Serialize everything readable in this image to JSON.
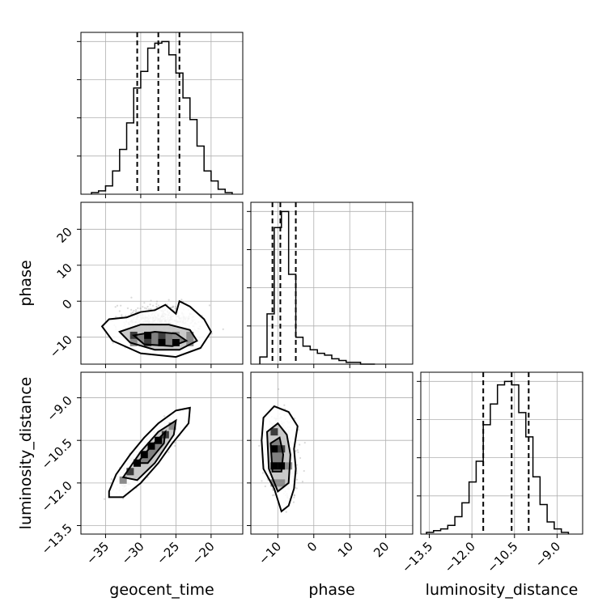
{
  "chart_data": {
    "type": "corner",
    "parameters": [
      "geocent_time",
      "phase",
      "luminosity_distance"
    ],
    "axis_ranges": {
      "geocent_time": [
        -38.5,
        -15.5
      ],
      "phase": [
        -17.5,
        27.5
      ],
      "luminosity_distance": [
        -13.8,
        -8.1
      ]
    },
    "ticks": {
      "geocent_time": [
        -35,
        -30,
        -25,
        -20
      ],
      "phase": [
        -10,
        0,
        10,
        20
      ],
      "luminosity_distance": [
        -13.5,
        -12.0,
        -10.5,
        -9.0
      ]
    },
    "tick_labels": {
      "geocent_time": [
        "−35",
        "−30",
        "−25",
        "−20"
      ],
      "phase": [
        "−10",
        "0",
        "10",
        "20"
      ],
      "luminosity_distance": [
        "−13.5",
        "−12.0",
        "−10.5",
        "−9.0"
      ]
    },
    "quantiles": {
      "geocent_time": [
        -30.5,
        -27.5,
        -24.5
      ],
      "phase": [
        -11.5,
        -9.3,
        -5.0
      ],
      "luminosity_distance": [
        -11.6,
        -10.6,
        -10.0
      ]
    },
    "histograms": {
      "geocent_time": {
        "edges": [
          -37.0,
          -36.0,
          -35.0,
          -34.0,
          -33.0,
          -32.0,
          -31.0,
          -30.0,
          -29.0,
          -28.0,
          -27.0,
          -26.0,
          -25.0,
          -24.0,
          -23.0,
          -22.0,
          -21.0,
          -20.0,
          -19.0,
          -18.0,
          -17.0
        ],
        "counts": [
          1,
          2,
          5,
          14,
          27,
          43,
          64,
          74,
          88,
          91,
          92,
          84,
          73,
          58,
          45,
          29,
          14,
          8,
          3,
          1
        ]
      },
      "phase": {
        "edges": [
          -15.0,
          -13.0,
          -11.0,
          -9.0,
          -7.0,
          -5.0,
          -3.0,
          -1.0,
          1.0,
          3.0,
          5.0,
          7.0,
          9.0,
          11.0,
          13.0,
          15.0,
          17.0
        ],
        "counts": [
          4,
          28,
          76,
          85,
          50,
          15,
          10,
          8,
          6,
          5,
          3,
          2,
          1,
          1,
          0,
          0
        ]
      },
      "luminosity_distance": {
        "edges": [
          -13.6,
          -13.35,
          -13.1,
          -12.85,
          -12.6,
          -12.35,
          -12.1,
          -11.85,
          -11.6,
          -11.35,
          -11.1,
          -10.85,
          -10.6,
          -10.35,
          -10.1,
          -9.85,
          -9.6,
          -9.35,
          -9.1,
          -8.85,
          -8.6
        ],
        "counts": [
          1,
          2,
          3,
          5,
          10,
          18,
          30,
          42,
          63,
          75,
          86,
          88,
          86,
          70,
          56,
          33,
          17,
          7,
          3,
          1
        ]
      }
    },
    "pair_densities": [
      {
        "x": "geocent_time",
        "y": "phase",
        "peak": [
          -28.0,
          -10.5
        ],
        "contours": [
          [
            [
              -35.5,
              -7.0
            ],
            [
              -34.5,
              -5.0
            ],
            [
              -32.0,
              -4.5
            ],
            [
              -30.0,
              -3.0
            ],
            [
              -28.0,
              -2.5
            ],
            [
              -26.5,
              -1.0
            ],
            [
              -25.0,
              -3.5
            ],
            [
              -24.5,
              0.0
            ],
            [
              -23.0,
              -1.5
            ],
            [
              -21.0,
              -5.0
            ],
            [
              -20.0,
              -8.5
            ],
            [
              -21.5,
              -13.0
            ],
            [
              -25.0,
              -15.5
            ],
            [
              -30.0,
              -14.5
            ],
            [
              -34.0,
              -11.0
            ]
          ],
          [
            [
              -33.0,
              -8.5
            ],
            [
              -30.0,
              -6.5
            ],
            [
              -26.0,
              -6.5
            ],
            [
              -23.0,
              -8.0
            ],
            [
              -22.0,
              -11.0
            ],
            [
              -24.5,
              -13.5
            ],
            [
              -28.0,
              -13.5
            ],
            [
              -31.5,
              -11.5
            ]
          ],
          [
            [
              -31.0,
              -9.5
            ],
            [
              -28.0,
              -8.5
            ],
            [
              -25.0,
              -9.0
            ],
            [
              -23.5,
              -11.0
            ],
            [
              -25.5,
              -12.5
            ],
            [
              -29.5,
              -12.0
            ]
          ]
        ],
        "cells": [
          {
            "x": -29.0,
            "y": -9.5,
            "level": 3
          },
          {
            "x": -27.0,
            "y": -9.5,
            "level": 2
          },
          {
            "x": -27.0,
            "y": -11.5,
            "level": 3
          },
          {
            "x": -25.0,
            "y": -11.5,
            "level": 3
          },
          {
            "x": -31.0,
            "y": -9.5,
            "level": 2
          },
          {
            "x": -29.0,
            "y": -11.5,
            "level": 2
          },
          {
            "x": -25.0,
            "y": -9.5,
            "level": 1
          },
          {
            "x": -31.0,
            "y": -11.5,
            "level": 1
          },
          {
            "x": -23.0,
            "y": -9.5,
            "level": 1
          },
          {
            "x": -23.0,
            "y": -11.5,
            "level": 1
          }
        ]
      },
      {
        "x": "geocent_time",
        "y": "luminosity_distance",
        "peak": [
          -28.5,
          -11.0
        ],
        "contours": [
          [
            [
              -34.5,
              -12.3
            ],
            [
              -33.5,
              -11.7
            ],
            [
              -31.5,
              -11.0
            ],
            [
              -29.5,
              -10.4
            ],
            [
              -27.5,
              -9.9
            ],
            [
              -25.0,
              -9.45
            ],
            [
              -23.0,
              -9.35
            ],
            [
              -23.2,
              -9.9
            ],
            [
              -25.5,
              -10.6
            ],
            [
              -27.5,
              -11.3
            ],
            [
              -30.0,
              -12.0
            ],
            [
              -32.5,
              -12.5
            ],
            [
              -34.5,
              -12.5
            ]
          ],
          [
            [
              -32.5,
              -11.8
            ],
            [
              -30.0,
              -10.9
            ],
            [
              -27.5,
              -10.2
            ],
            [
              -25.0,
              -9.8
            ],
            [
              -25.3,
              -10.3
            ],
            [
              -28.0,
              -11.3
            ],
            [
              -30.5,
              -11.9
            ]
          ],
          [
            [
              -30.5,
              -11.3
            ],
            [
              -28.5,
              -10.7
            ],
            [
              -26.5,
              -10.2
            ],
            [
              -26.7,
              -10.6
            ],
            [
              -29.0,
              -11.3
            ]
          ]
        ],
        "cells": [
          {
            "x": -30.5,
            "y": -11.3,
            "level": 3
          },
          {
            "x": -29.5,
            "y": -11.0,
            "level": 3
          },
          {
            "x": -28.5,
            "y": -10.7,
            "level": 3
          },
          {
            "x": -27.5,
            "y": -10.5,
            "level": 3
          },
          {
            "x": -26.5,
            "y": -10.3,
            "level": 2
          },
          {
            "x": -31.5,
            "y": -11.6,
            "level": 2
          },
          {
            "x": -25.5,
            "y": -10.0,
            "level": 1
          },
          {
            "x": -32.5,
            "y": -11.9,
            "level": 1
          }
        ]
      },
      {
        "x": "phase",
        "y": "luminosity_distance",
        "peak": [
          -10.0,
          -11.0
        ],
        "contours": [
          [
            [
              -14.5,
              -10.5
            ],
            [
              -14.0,
              -9.7
            ],
            [
              -11.0,
              -9.3
            ],
            [
              -7.0,
              -9.5
            ],
            [
              -4.5,
              -10.0
            ],
            [
              -5.5,
              -10.8
            ],
            [
              -5.0,
              -11.5
            ],
            [
              -5.5,
              -12.2
            ],
            [
              -7.0,
              -12.8
            ],
            [
              -9.0,
              -13.0
            ],
            [
              -11.0,
              -12.2
            ],
            [
              -14.0,
              -11.5
            ]
          ],
          [
            [
              -13.0,
              -10.2
            ],
            [
              -10.0,
              -9.9
            ],
            [
              -7.5,
              -10.3
            ],
            [
              -6.5,
              -11.0
            ],
            [
              -7.0,
              -12.0
            ],
            [
              -10.0,
              -12.3
            ],
            [
              -12.5,
              -11.5
            ]
          ],
          [
            [
              -12.0,
              -10.6
            ],
            [
              -9.5,
              -10.4
            ],
            [
              -8.5,
              -11.0
            ],
            [
              -9.0,
              -11.6
            ],
            [
              -11.5,
              -11.6
            ]
          ]
        ],
        "cells": [
          {
            "x": -11.0,
            "y": -10.8,
            "level": 3
          },
          {
            "x": -11.0,
            "y": -11.4,
            "level": 3
          },
          {
            "x": -9.0,
            "y": -11.4,
            "level": 3
          },
          {
            "x": -9.0,
            "y": -10.8,
            "level": 2
          },
          {
            "x": -11.0,
            "y": -10.2,
            "level": 2
          },
          {
            "x": -9.0,
            "y": -12.0,
            "level": 1
          },
          {
            "x": -11.0,
            "y": -12.0,
            "level": 1
          },
          {
            "x": -7.0,
            "y": -11.4,
            "level": 1
          }
        ]
      }
    ]
  }
}
